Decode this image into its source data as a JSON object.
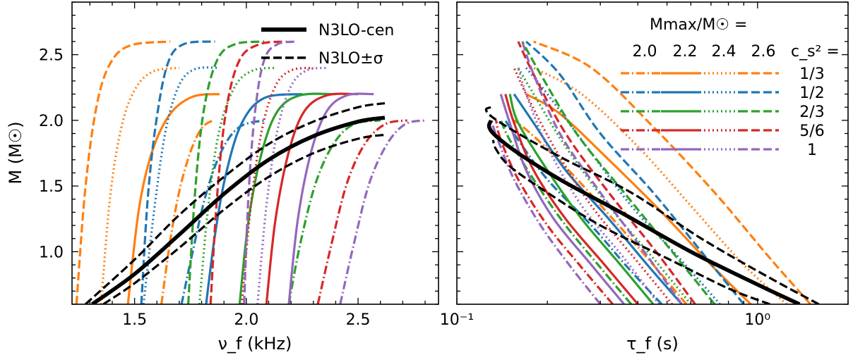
{
  "chart_data": [
    {
      "type": "line",
      "panel": "left",
      "xlabel": "ν_f (kHz)",
      "ylabel": "M (M☉)",
      "xlim": [
        1.22,
        2.86
      ],
      "ylim": [
        0.6,
        2.9
      ],
      "xscale": "linear",
      "xticks": [
        1.5,
        2.0,
        2.5
      ],
      "xtick_labels": [
        "1.5",
        "2.0",
        "2.5"
      ],
      "yticks": [
        1.0,
        1.5,
        2.0,
        2.5
      ],
      "ytick_labels": [
        "1.0",
        "1.5",
        "2.0",
        "2.5"
      ],
      "legend": {
        "placement": "top-right",
        "entries": [
          {
            "label": "N3LO-cen",
            "style": "solid"
          },
          {
            "label": "N3LO±σ",
            "style": "dashed"
          }
        ]
      },
      "series": [
        {
          "group": "N3LO",
          "variant": "cen",
          "color": "#000000",
          "x": [
            1.31,
            1.5,
            1.7,
            1.9,
            2.1,
            2.3,
            2.5,
            2.62
          ],
          "y": [
            0.6,
            0.83,
            1.13,
            1.44,
            1.7,
            1.88,
            1.99,
            2.02
          ]
        },
        {
          "group": "N3LO",
          "variant": "plus",
          "color": "#000000",
          "x": [
            1.28,
            1.5,
            1.7,
            1.9,
            2.1,
            2.3,
            2.5,
            2.62
          ],
          "y": [
            0.6,
            0.94,
            1.28,
            1.57,
            1.82,
            1.99,
            2.1,
            2.13
          ]
        },
        {
          "group": "N3LO",
          "variant": "minus",
          "color": "#000000",
          "x": [
            1.36,
            1.5,
            1.7,
            1.9,
            2.1,
            2.3,
            2.5,
            2.62
          ],
          "y": [
            0.6,
            0.76,
            1.03,
            1.32,
            1.57,
            1.75,
            1.86,
            1.89
          ]
        },
        {
          "cs2": "1/3",
          "mmax": "2.0",
          "color": "#ff7f0e",
          "x": [
            1.62,
            1.66,
            1.7,
            1.75,
            1.8,
            1.85
          ],
          "y": [
            0.6,
            1.09,
            1.46,
            1.76,
            1.94,
            2.0
          ]
        },
        {
          "cs2": "1/3",
          "mmax": "2.2",
          "color": "#ff7f0e",
          "x": [
            1.47,
            1.52,
            1.58,
            1.66,
            1.76,
            1.88
          ],
          "y": [
            0.6,
            1.33,
            1.77,
            2.05,
            2.18,
            2.2
          ]
        },
        {
          "cs2": "1/3",
          "mmax": "2.4",
          "color": "#ff7f0e",
          "x": [
            1.35,
            1.39,
            1.44,
            1.5,
            1.58,
            1.7
          ],
          "y": [
            0.6,
            1.41,
            1.94,
            2.23,
            2.37,
            2.4
          ]
        },
        {
          "cs2": "1/3",
          "mmax": "2.6",
          "color": "#ff7f0e",
          "x": [
            1.24,
            1.28,
            1.33,
            1.39,
            1.48,
            1.66
          ],
          "y": [
            0.6,
            1.49,
            2.11,
            2.43,
            2.57,
            2.6
          ]
        },
        {
          "cs2": "1/2",
          "mmax": "2.0",
          "color": "#1f77b4",
          "x": [
            1.71,
            1.76,
            1.82,
            1.89,
            1.97,
            2.08
          ],
          "y": [
            0.6,
            1.0,
            1.44,
            1.77,
            1.95,
            2.0
          ]
        },
        {
          "cs2": "1/2",
          "mmax": "2.2",
          "color": "#1f77b4",
          "x": [
            1.82,
            1.86,
            1.91,
            1.98,
            2.08,
            2.25
          ],
          "y": [
            0.6,
            1.13,
            1.6,
            1.98,
            2.17,
            2.2
          ]
        },
        {
          "cs2": "1/2",
          "mmax": "2.4",
          "color": "#1f77b4",
          "x": [
            1.54,
            1.59,
            1.64,
            1.7,
            1.77,
            1.88
          ],
          "y": [
            0.6,
            1.35,
            1.93,
            2.27,
            2.39,
            2.4
          ]
        },
        {
          "cs2": "1/2",
          "mmax": "2.6",
          "color": "#1f77b4",
          "x": [
            1.53,
            1.56,
            1.6,
            1.65,
            1.72,
            1.86
          ],
          "y": [
            0.6,
            1.43,
            2.03,
            2.44,
            2.58,
            2.6
          ]
        },
        {
          "cs2": "2/3",
          "mmax": "2.0",
          "color": "#2ca02c",
          "x": [
            2.19,
            2.24,
            2.31,
            2.39,
            2.48,
            2.6
          ],
          "y": [
            0.6,
            1.05,
            1.52,
            1.82,
            1.97,
            2.0
          ]
        },
        {
          "cs2": "2/3",
          "mmax": "2.2",
          "color": "#2ca02c",
          "x": [
            1.97,
            2.01,
            2.07,
            2.14,
            2.24,
            2.4
          ],
          "y": [
            0.6,
            1.24,
            1.76,
            2.07,
            2.19,
            2.2
          ]
        },
        {
          "cs2": "2/3",
          "mmax": "2.4",
          "color": "#2ca02c",
          "x": [
            1.79,
            1.83,
            1.88,
            1.95,
            2.03,
            2.13
          ],
          "y": [
            0.6,
            1.35,
            1.93,
            2.26,
            2.38,
            2.4
          ]
        },
        {
          "cs2": "2/3",
          "mmax": "2.6",
          "color": "#2ca02c",
          "x": [
            1.74,
            1.77,
            1.81,
            1.87,
            1.95,
            2.08
          ],
          "y": [
            0.6,
            1.44,
            2.08,
            2.46,
            2.58,
            2.6
          ]
        },
        {
          "cs2": "5/6",
          "mmax": "2.0",
          "color": "#d62728",
          "x": [
            2.32,
            2.38,
            2.45,
            2.53,
            2.62,
            2.72
          ],
          "y": [
            0.6,
            1.05,
            1.52,
            1.82,
            1.97,
            2.0
          ]
        },
        {
          "cs2": "5/6",
          "mmax": "2.2",
          "color": "#d62728",
          "x": [
            2.09,
            2.13,
            2.19,
            2.26,
            2.36,
            2.5
          ],
          "y": [
            0.6,
            1.24,
            1.76,
            2.07,
            2.19,
            2.2
          ]
        },
        {
          "cs2": "5/6",
          "mmax": "2.4",
          "color": "#d62728",
          "x": [
            1.98,
            2.02,
            2.07,
            2.13,
            2.2,
            2.3
          ],
          "y": [
            0.6,
            1.35,
            1.93,
            2.26,
            2.38,
            2.4
          ]
        },
        {
          "cs2": "5/6",
          "mmax": "2.6",
          "color": "#d62728",
          "x": [
            1.84,
            1.87,
            1.91,
            1.97,
            2.06,
            2.18
          ],
          "y": [
            0.6,
            1.44,
            2.08,
            2.46,
            2.58,
            2.6
          ]
        },
        {
          "cs2": "1",
          "mmax": "2.0",
          "color": "#9467bd",
          "x": [
            2.42,
            2.48,
            2.55,
            2.63,
            2.71,
            2.8
          ],
          "y": [
            0.6,
            1.05,
            1.52,
            1.82,
            1.97,
            2.0
          ]
        },
        {
          "cs2": "1",
          "mmax": "2.2",
          "color": "#9467bd",
          "x": [
            2.19,
            2.23,
            2.29,
            2.36,
            2.45,
            2.57
          ],
          "y": [
            0.6,
            1.24,
            1.76,
            2.07,
            2.19,
            2.2
          ]
        },
        {
          "cs2": "1",
          "mmax": "2.4",
          "color": "#9467bd",
          "x": [
            2.05,
            2.09,
            2.14,
            2.2,
            2.27,
            2.36
          ],
          "y": [
            0.6,
            1.35,
            1.93,
            2.26,
            2.38,
            2.4
          ]
        },
        {
          "cs2": "1",
          "mmax": "2.6",
          "color": "#9467bd",
          "x": [
            1.99,
            2.01,
            2.04,
            2.08,
            2.14,
            2.23
          ],
          "y": [
            0.6,
            1.44,
            2.08,
            2.46,
            2.58,
            2.6
          ]
        }
      ]
    },
    {
      "type": "line",
      "panel": "right",
      "xlabel": "τ_f (s)",
      "ylim": [
        0.6,
        2.9
      ],
      "xlim": [
        0.1,
        2.0
      ],
      "xscale": "log",
      "xticks": [
        0.1,
        1.0
      ],
      "xtick_labels": [
        "10⁻¹",
        "10⁰"
      ],
      "legend": {
        "placement": "top-right",
        "title": "Mmax/M☉ =",
        "columns": [
          "2.0",
          "2.2",
          "2.4",
          "2.6"
        ],
        "column_styles": [
          "dashdot",
          "solid",
          "dotted",
          "dashed"
        ],
        "row_header": "c_s² =",
        "rows": [
          {
            "label": "1/3",
            "color": "#ff7f0e"
          },
          {
            "label": "1/2",
            "color": "#1f77b4"
          },
          {
            "label": "2/3",
            "color": "#2ca02c"
          },
          {
            "label": "5/6",
            "color": "#d62728"
          },
          {
            "label": "1",
            "color": "#9467bd"
          }
        ]
      },
      "series": [
        {
          "group": "N3LO",
          "variant": "cen",
          "color": "#000000",
          "x": [
            1.38,
            1.0,
            0.6,
            0.35,
            0.22,
            0.16,
            0.135,
            0.128,
            0.13
          ],
          "y": [
            0.6,
            0.75,
            1.0,
            1.3,
            1.55,
            1.75,
            1.88,
            1.95,
            2.0
          ]
        },
        {
          "group": "N3LO",
          "variant": "plus",
          "color": "#000000",
          "x": [
            1.6,
            1.1,
            0.65,
            0.38,
            0.23,
            0.16,
            0.132,
            0.125,
            0.13
          ],
          "y": [
            0.6,
            0.8,
            1.1,
            1.45,
            1.7,
            1.9,
            2.02,
            2.08,
            2.1
          ]
        },
        {
          "group": "N3LO",
          "variant": "minus",
          "color": "#000000",
          "x": [
            1.1,
            0.8,
            0.5,
            0.3,
            0.2,
            0.15,
            0.135,
            0.132
          ],
          "y": [
            0.6,
            0.72,
            0.95,
            1.2,
            1.45,
            1.65,
            1.78,
            1.85
          ]
        },
        {
          "cs2": "1/3",
          "mmax": "2.0",
          "color": "#ff7f0e",
          "x": [
            0.58,
            0.45,
            0.33,
            0.24,
            0.18,
            0.155
          ],
          "y": [
            0.6,
            0.9,
            1.25,
            1.6,
            1.88,
            2.0
          ]
        },
        {
          "cs2": "1/3",
          "mmax": "2.2",
          "color": "#ff7f0e",
          "x": [
            0.95,
            0.7,
            0.48,
            0.32,
            0.22,
            0.17
          ],
          "y": [
            0.6,
            0.9,
            1.3,
            1.7,
            2.05,
            2.2
          ]
        },
        {
          "cs2": "1/3",
          "mmax": "2.4",
          "color": "#ff7f0e",
          "x": [
            1.25,
            0.9,
            0.6,
            0.4,
            0.26,
            0.18
          ],
          "y": [
            0.6,
            0.9,
            1.35,
            1.8,
            2.2,
            2.4
          ]
        },
        {
          "cs2": "1/3",
          "mmax": "2.6",
          "color": "#ff7f0e",
          "x": [
            1.5,
            1.1,
            0.72,
            0.45,
            0.28,
            0.18
          ],
          "y": [
            0.6,
            0.95,
            1.45,
            1.95,
            2.4,
            2.6
          ]
        },
        {
          "cs2": "1/2",
          "mmax": "2.0",
          "color": "#1f77b4",
          "x": [
            0.48,
            0.37,
            0.28,
            0.2,
            0.16,
            0.145
          ],
          "y": [
            0.6,
            0.88,
            1.2,
            1.55,
            1.85,
            2.0
          ]
        },
        {
          "cs2": "1/2",
          "mmax": "2.2",
          "color": "#1f77b4",
          "x": [
            0.56,
            0.43,
            0.32,
            0.23,
            0.18,
            0.155
          ],
          "y": [
            0.6,
            0.9,
            1.25,
            1.62,
            1.98,
            2.2
          ]
        },
        {
          "cs2": "1/2",
          "mmax": "2.4",
          "color": "#1f77b4",
          "x": [
            0.75,
            0.55,
            0.38,
            0.27,
            0.2,
            0.17
          ],
          "y": [
            0.6,
            0.95,
            1.35,
            1.8,
            2.2,
            2.4
          ]
        },
        {
          "cs2": "1/2",
          "mmax": "2.6",
          "color": "#1f77b4",
          "x": [
            0.9,
            0.65,
            0.45,
            0.3,
            0.22,
            0.17
          ],
          "y": [
            0.6,
            1.0,
            1.45,
            1.9,
            2.35,
            2.6
          ]
        },
        {
          "cs2": "2/3",
          "mmax": "2.0",
          "color": "#2ca02c",
          "x": [
            0.38,
            0.3,
            0.23,
            0.18,
            0.15,
            0.14
          ],
          "y": [
            0.6,
            0.88,
            1.2,
            1.55,
            1.85,
            2.0
          ]
        },
        {
          "cs2": "2/3",
          "mmax": "2.2",
          "color": "#2ca02c",
          "x": [
            0.45,
            0.35,
            0.26,
            0.2,
            0.16,
            0.15
          ],
          "y": [
            0.6,
            0.9,
            1.25,
            1.62,
            1.98,
            2.2
          ]
        },
        {
          "cs2": "2/3",
          "mmax": "2.4",
          "color": "#2ca02c",
          "x": [
            0.6,
            0.45,
            0.32,
            0.23,
            0.18,
            0.16
          ],
          "y": [
            0.6,
            0.95,
            1.35,
            1.8,
            2.2,
            2.4
          ]
        },
        {
          "cs2": "2/3",
          "mmax": "2.6",
          "color": "#2ca02c",
          "x": [
            0.72,
            0.52,
            0.36,
            0.25,
            0.19,
            0.165
          ],
          "y": [
            0.6,
            1.0,
            1.45,
            1.9,
            2.35,
            2.6
          ]
        },
        {
          "cs2": "5/6",
          "mmax": "2.0",
          "color": "#d62728",
          "x": [
            0.33,
            0.26,
            0.2,
            0.16,
            0.14,
            0.135
          ],
          "y": [
            0.6,
            0.88,
            1.2,
            1.55,
            1.85,
            2.0
          ]
        },
        {
          "cs2": "5/6",
          "mmax": "2.2",
          "color": "#d62728",
          "x": [
            0.4,
            0.31,
            0.23,
            0.18,
            0.155,
            0.145
          ],
          "y": [
            0.6,
            0.9,
            1.25,
            1.62,
            1.98,
            2.2
          ]
        },
        {
          "cs2": "5/6",
          "mmax": "2.4",
          "color": "#d62728",
          "x": [
            0.52,
            0.39,
            0.28,
            0.21,
            0.17,
            0.155
          ],
          "y": [
            0.6,
            0.95,
            1.35,
            1.8,
            2.2,
            2.4
          ]
        },
        {
          "cs2": "5/6",
          "mmax": "2.6",
          "color": "#d62728",
          "x": [
            0.62,
            0.46,
            0.32,
            0.23,
            0.18,
            0.16
          ],
          "y": [
            0.6,
            1.0,
            1.45,
            1.9,
            2.35,
            2.6
          ]
        },
        {
          "cs2": "1",
          "mmax": "2.0",
          "color": "#9467bd",
          "x": [
            0.3,
            0.24,
            0.19,
            0.155,
            0.137,
            0.13
          ],
          "y": [
            0.6,
            0.88,
            1.2,
            1.55,
            1.85,
            2.0
          ]
        },
        {
          "cs2": "1",
          "mmax": "2.2",
          "color": "#9467bd",
          "x": [
            0.36,
            0.28,
            0.21,
            0.17,
            0.15,
            0.14
          ],
          "y": [
            0.6,
            0.9,
            1.25,
            1.62,
            1.98,
            2.2
          ]
        },
        {
          "cs2": "1",
          "mmax": "2.4",
          "color": "#9467bd",
          "x": [
            0.47,
            0.36,
            0.26,
            0.2,
            0.17,
            0.16
          ],
          "y": [
            0.6,
            0.95,
            1.35,
            1.8,
            2.2,
            2.4
          ]
        },
        {
          "cs2": "1",
          "mmax": "2.6",
          "color": "#9467bd",
          "x": [
            0.56,
            0.42,
            0.3,
            0.22,
            0.18,
            0.165
          ],
          "y": [
            0.6,
            1.0,
            1.45,
            1.9,
            2.35,
            2.6
          ]
        }
      ]
    }
  ]
}
